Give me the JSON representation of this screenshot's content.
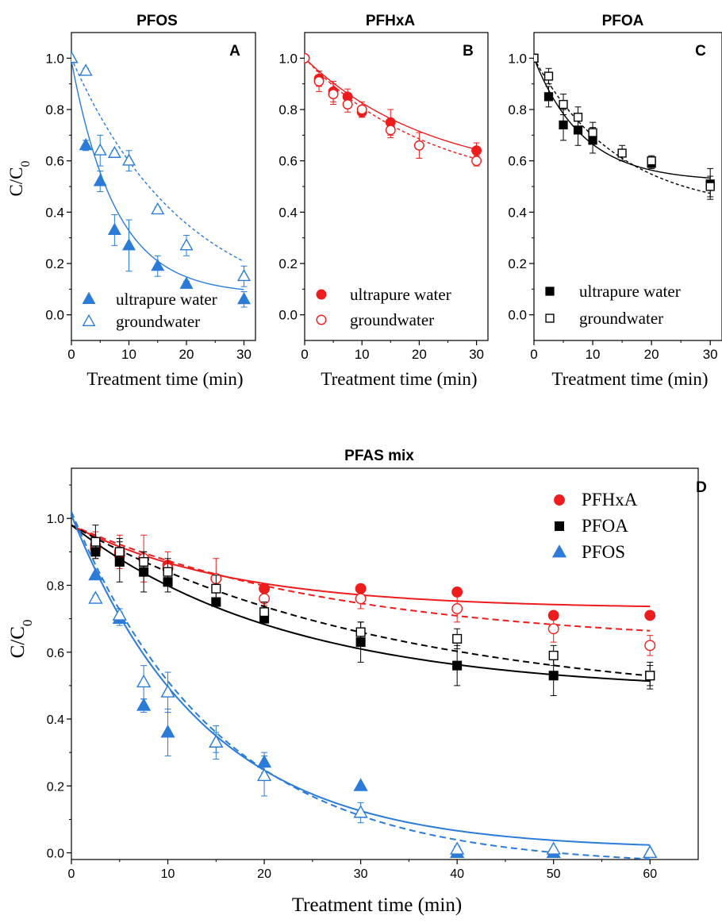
{
  "chart_data": [
    {
      "type": "scatter",
      "panel": "A",
      "title": "PFOS",
      "xlabel": "Treatment time (min)",
      "ylabel": "C/C0",
      "xlim": [
        0,
        32
      ],
      "ylim": [
        -0.1,
        1.1
      ],
      "xticks": [
        0,
        10,
        20,
        30
      ],
      "yticks": [
        0.0,
        0.2,
        0.4,
        0.6,
        0.8,
        1.0
      ],
      "color": "#2b7bd8",
      "legend": "bottom-left",
      "series": [
        {
          "name": "ultrapure water",
          "marker": "triangle-filled",
          "line": "solid",
          "x": [
            0,
            2.5,
            5,
            7.5,
            10,
            15,
            20,
            30
          ],
          "y": [
            1.0,
            0.66,
            0.52,
            0.33,
            0.27,
            0.19,
            0.12,
            0.06
          ],
          "err": [
            0,
            0.02,
            0.04,
            0.06,
            0.1,
            0.04,
            0.01,
            0.03
          ],
          "fit": {
            "a": 0.91,
            "k": 0.13,
            "c": 0.08
          }
        },
        {
          "name": "groundwater",
          "marker": "triangle-open",
          "line": "dashed",
          "x": [
            0,
            2.5,
            5,
            7.5,
            10,
            15,
            20,
            30
          ],
          "y": [
            1.0,
            0.95,
            0.64,
            0.63,
            0.6,
            0.41,
            0.27,
            0.15
          ],
          "err": [
            0,
            0.01,
            0.06,
            0.01,
            0.04,
            0.01,
            0.04,
            0.04
          ],
          "fit": {
            "a": 1.02,
            "k": 0.05,
            "c": -0.02
          }
        }
      ]
    },
    {
      "type": "scatter",
      "panel": "B",
      "title": "PFHxA",
      "xlabel": "Treatment time (min)",
      "ylabel": "",
      "xlim": [
        0,
        32
      ],
      "ylim": [
        -0.1,
        1.1
      ],
      "xticks": [
        0,
        10,
        20,
        30
      ],
      "yticks": [
        0.0,
        0.2,
        0.4,
        0.6,
        0.8,
        1.0
      ],
      "color": "#ee1c1c",
      "legend": "bottom-left",
      "series": [
        {
          "name": "ultrapure water",
          "marker": "circle-filled",
          "line": "solid",
          "x": [
            0,
            2.5,
            5,
            7.5,
            10,
            15,
            30
          ],
          "y": [
            1.0,
            0.92,
            0.87,
            0.85,
            0.79,
            0.75,
            0.64
          ],
          "err": [
            0,
            0.03,
            0.04,
            0.03,
            0.02,
            0.05,
            0.03
          ],
          "fit": {
            "a": 0.48,
            "k": 0.045,
            "c": 0.52
          }
        },
        {
          "name": "groundwater",
          "marker": "circle-open",
          "line": "dashed",
          "x": [
            0,
            2.5,
            5,
            7.5,
            10,
            15,
            20,
            30
          ],
          "y": [
            1.0,
            0.91,
            0.86,
            0.82,
            0.8,
            0.72,
            0.66,
            0.6
          ],
          "err": [
            0,
            0.04,
            0.04,
            0.03,
            0.03,
            0.03,
            0.05,
            0.02
          ],
          "fit": {
            "a": 0.53,
            "k": 0.045,
            "c": 0.47
          }
        }
      ]
    },
    {
      "type": "scatter",
      "panel": "C",
      "title": "PFOA",
      "xlabel": "Treatment time (min)",
      "ylabel": "",
      "xlim": [
        0,
        32
      ],
      "ylim": [
        -0.1,
        1.1
      ],
      "xticks": [
        0,
        10,
        20,
        30
      ],
      "yticks": [
        0.0,
        0.2,
        0.4,
        0.6,
        0.8,
        1.0
      ],
      "color": "#000000",
      "legend": "bottom-left",
      "series": [
        {
          "name": "ultrapure water",
          "marker": "square-filled",
          "line": "solid",
          "x": [
            0,
            2.5,
            5,
            7.5,
            10,
            20,
            30
          ],
          "y": [
            1.0,
            0.85,
            0.74,
            0.72,
            0.68,
            0.59,
            0.51
          ],
          "err": [
            0,
            0.04,
            0.06,
            0.06,
            0.05,
            0.02,
            0.06
          ],
          "fit": {
            "a": 0.48,
            "k": 0.12,
            "c": 0.52
          }
        },
        {
          "name": "groundwater",
          "marker": "square-open",
          "line": "dashed",
          "x": [
            0,
            2.5,
            5,
            7.5,
            10,
            15,
            20,
            30
          ],
          "y": [
            1.0,
            0.93,
            0.82,
            0.77,
            0.71,
            0.63,
            0.6,
            0.5
          ],
          "err": [
            0,
            0.03,
            0.04,
            0.04,
            0.04,
            0.03,
            0.02,
            0.04
          ],
          "fit": {
            "a": 0.6,
            "k": 0.07,
            "c": 0.4
          }
        }
      ]
    },
    {
      "type": "scatter",
      "panel": "D",
      "title": "PFAS mix",
      "xlabel": "Treatment time (min)",
      "ylabel": "C/C0",
      "xlim": [
        0,
        65
      ],
      "ylim": [
        -0.02,
        1.15
      ],
      "xticks": [
        0,
        10,
        20,
        30,
        40,
        50,
        60
      ],
      "yticks": [
        0.0,
        0.2,
        0.4,
        0.6,
        0.8,
        1.0
      ],
      "legend": "top-right",
      "legend_entries": [
        {
          "name": "PFHxA",
          "marker": "circle-filled",
          "color": "#ee1c1c"
        },
        {
          "name": "PFOA",
          "marker": "square-filled",
          "color": "#000000"
        },
        {
          "name": "PFOS",
          "marker": "triangle-filled",
          "color": "#2b7bd8"
        }
      ],
      "series": [
        {
          "compound": "PFHxA",
          "water": "ultrapure water",
          "color": "#ee1c1c",
          "marker": "circle-filled",
          "line": "solid",
          "x": [
            2.5,
            5,
            7.5,
            10,
            15,
            20,
            30,
            40,
            50,
            60
          ],
          "y": [
            0.91,
            0.89,
            0.88,
            0.86,
            0.82,
            0.79,
            0.79,
            0.78,
            0.71,
            0.71
          ],
          "err": [
            0,
            0,
            0,
            0,
            0,
            0,
            0,
            0,
            0,
            0
          ],
          "fit": {
            "a": 0.25,
            "k": 0.06,
            "c": 0.73
          }
        },
        {
          "compound": "PFHxA",
          "water": "groundwater",
          "color": "#ee1c1c",
          "marker": "circle-open",
          "line": "dashed",
          "x": [
            2.5,
            5,
            7.5,
            10,
            15,
            20,
            30,
            40,
            50,
            60
          ],
          "y": [
            0.92,
            0.9,
            0.88,
            0.85,
            0.82,
            0.76,
            0.76,
            0.73,
            0.67,
            0.62
          ],
          "err": [
            0.04,
            0.05,
            0.07,
            0.05,
            0.06,
            0.02,
            0.03,
            0.04,
            0.04,
            0.03
          ],
          "fit": {
            "a": 0.36,
            "k": 0.035,
            "c": 0.62
          }
        },
        {
          "compound": "PFOA",
          "water": "ultrapure water",
          "color": "#000000",
          "marker": "square-filled",
          "line": "solid",
          "x": [
            2.5,
            5,
            7.5,
            10,
            15,
            20,
            30,
            40,
            50,
            60
          ],
          "y": [
            0.9,
            0.87,
            0.84,
            0.81,
            0.75,
            0.7,
            0.63,
            0.56,
            0.53,
            0.53
          ],
          "err": [
            0,
            0.06,
            0.06,
            0.03,
            0,
            0,
            0.06,
            0.06,
            0.06,
            0.04
          ],
          "fit": {
            "a": 0.5,
            "k": 0.045,
            "c": 0.48
          }
        },
        {
          "compound": "PFOA",
          "water": "groundwater",
          "color": "#000000",
          "marker": "square-open",
          "line": "dashed",
          "x": [
            2.5,
            5,
            7.5,
            10,
            15,
            20,
            30,
            40,
            50,
            60
          ],
          "y": [
            0.93,
            0.9,
            0.87,
            0.84,
            0.79,
            0.72,
            0.66,
            0.64,
            0.59,
            0.53
          ],
          "err": [
            0.05,
            0.04,
            0.03,
            0.04,
            0.04,
            0.03,
            0.03,
            0.03,
            0.03,
            0.03
          ],
          "fit": {
            "a": 0.54,
            "k": 0.03,
            "c": 0.44
          }
        },
        {
          "compound": "PFOS",
          "water": "ultrapure water",
          "color": "#2b7bd8",
          "marker": "triangle-filled",
          "line": "solid",
          "x": [
            2.5,
            5,
            7.5,
            10,
            15,
            20,
            30,
            40,
            50,
            60
          ],
          "y": [
            0.83,
            0.7,
            0.44,
            0.36,
            0.33,
            0.27,
            0.2,
            0.0,
            0.0,
            0.0
          ],
          "err": [
            0,
            0.02,
            0.02,
            0.07,
            0.03,
            0.03,
            0,
            0,
            0,
            0
          ],
          "fit": {
            "a": 1.0,
            "k": 0.072,
            "c": 0.01
          }
        },
        {
          "compound": "PFOS",
          "water": "groundwater",
          "color": "#2b7bd8",
          "marker": "triangle-open",
          "line": "dashed",
          "x": [
            2.5,
            5,
            7.5,
            10,
            15,
            20,
            30,
            40,
            50,
            60
          ],
          "y": [
            0.76,
            0.71,
            0.51,
            0.48,
            0.33,
            0.23,
            0.12,
            0.01,
            0.01,
            0.0
          ],
          "err": [
            0.01,
            0.02,
            0.05,
            0.06,
            0.05,
            0.06,
            0.03,
            0.01,
            0,
            0
          ],
          "fit": {
            "a": 1.06,
            "k": 0.065,
            "c": -0.04
          }
        }
      ]
    }
  ]
}
